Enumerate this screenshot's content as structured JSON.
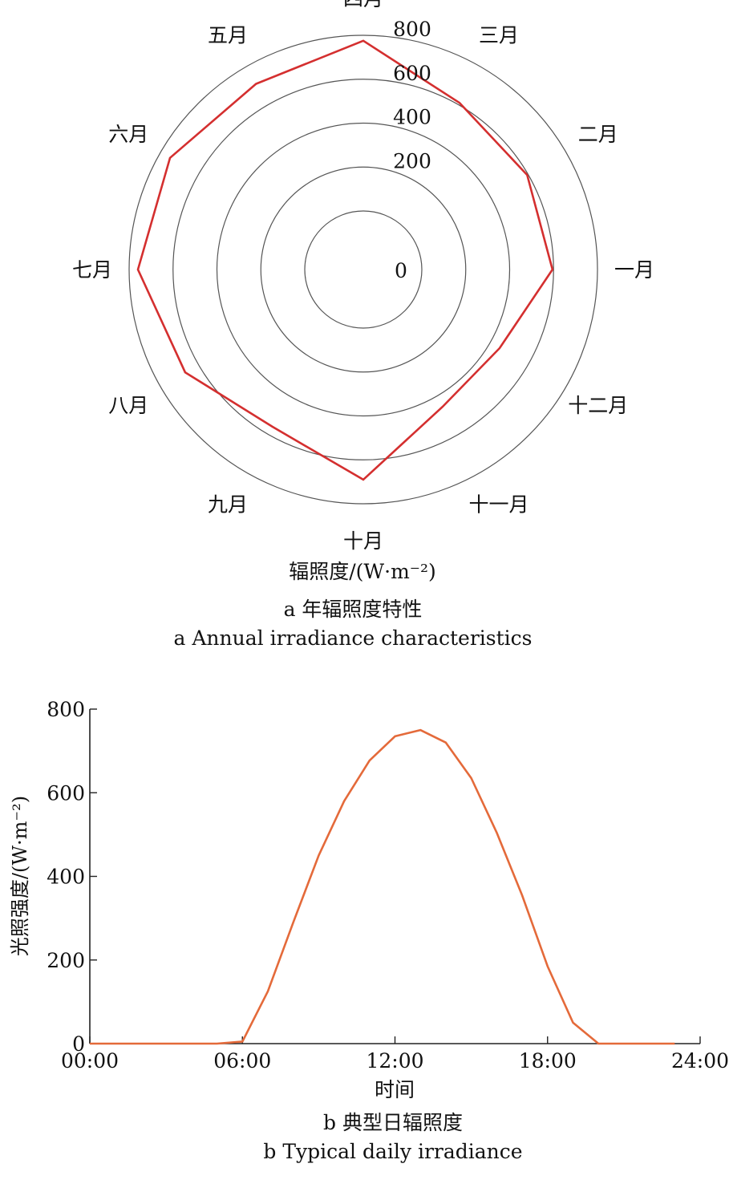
{
  "chart_data": [
    {
      "type": "radar",
      "categories": [
        "一月",
        "二月",
        "三月",
        "四月",
        "五月",
        "六月",
        "七月",
        "八月",
        "九月",
        "十月",
        "十一月",
        "十二月"
      ],
      "series": [
        {
          "values": [
            595,
            595,
            610,
            775,
            710,
            750,
            760,
            670,
            560,
            690,
            455,
            450
          ]
        }
      ],
      "rlim": [
        0,
        800
      ],
      "rticks": [
        0,
        200,
        400,
        600,
        800
      ],
      "rtick_labels": [
        "0",
        "200",
        "400",
        "600",
        "800"
      ],
      "xlabel": "辐照度/(W·m⁻²)",
      "caption_cn": "a 年辐照度特性",
      "caption_en": "a Annual irradiance characteristics",
      "color": "#d42f2f"
    },
    {
      "type": "line",
      "x": [
        "00:00",
        "01:00",
        "02:00",
        "03:00",
        "04:00",
        "05:00",
        "06:00",
        "07:00",
        "08:00",
        "09:00",
        "10:00",
        "11:00",
        "12:00",
        "13:00",
        "14:00",
        "15:00",
        "16:00",
        "17:00",
        "18:00",
        "19:00",
        "20:00",
        "21:00",
        "22:00",
        "23:00"
      ],
      "series": [
        {
          "values": [
            0,
            0,
            0,
            0,
            0,
            0,
            5,
            125,
            290,
            450,
            580,
            677,
            735,
            750,
            720,
            635,
            505,
            355,
            185,
            50,
            0,
            0,
            0,
            0
          ]
        }
      ],
      "xlim": [
        "00:00",
        "24:00"
      ],
      "xticks": [
        "00:00",
        "06:00",
        "12:00",
        "18:00",
        "24:00"
      ],
      "ylim": [
        0,
        800
      ],
      "yticks": [
        "0",
        "200",
        "400",
        "600",
        "800"
      ],
      "xlabel": "时间",
      "ylabel": "光照强度/(W·m⁻²)",
      "caption_cn": "b 典型日辐照度",
      "caption_en": "b Typical daily irradiance",
      "color": "#e46a3a"
    }
  ]
}
